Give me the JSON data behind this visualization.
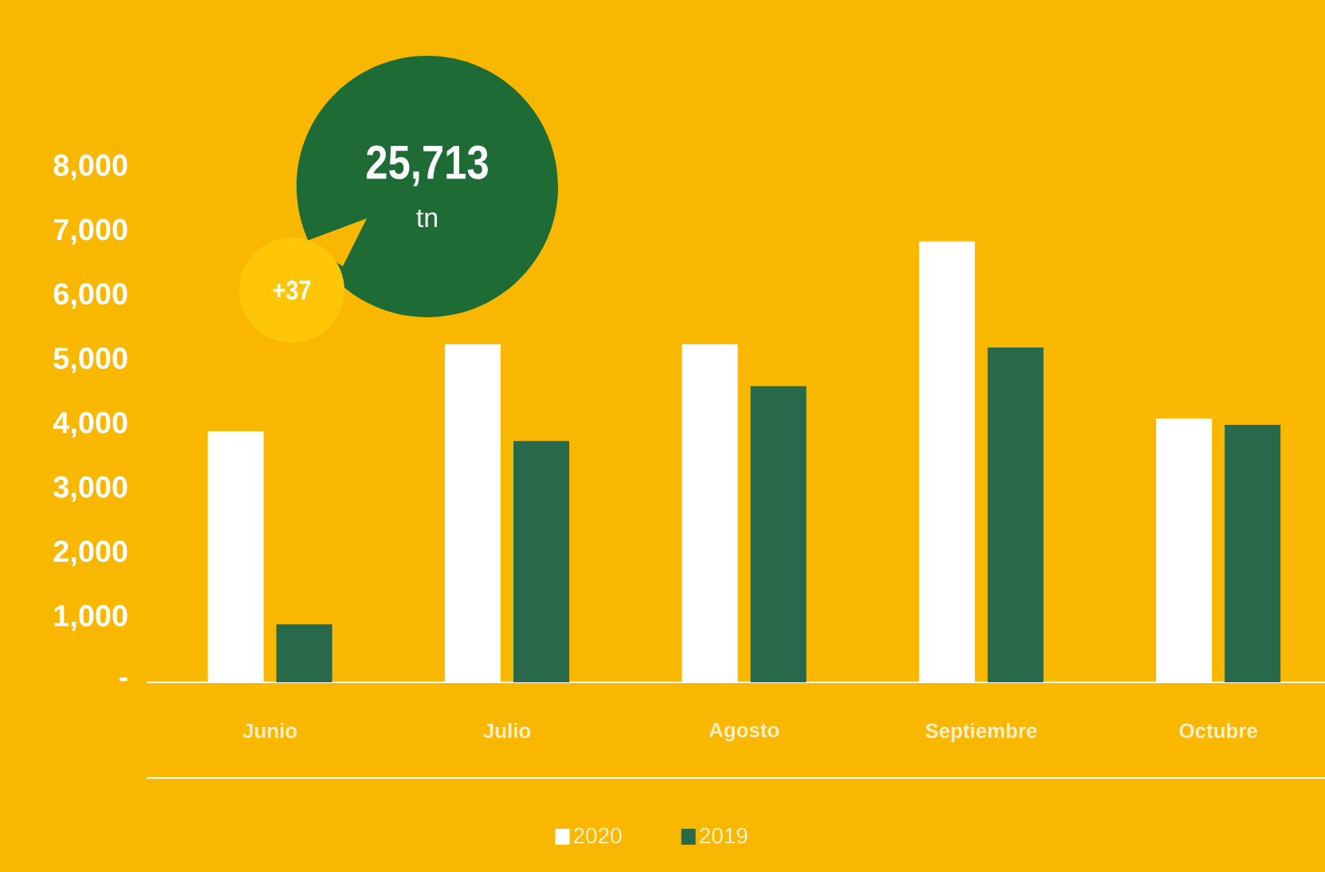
{
  "chart_data": {
    "type": "bar",
    "categories": [
      "Junio",
      "Julio",
      "Agosto",
      "Septiembre",
      "Octubre"
    ],
    "series": [
      {
        "name": "2020",
        "color": "#ffffff",
        "values": [
          3900,
          5250,
          5250,
          6850,
          4100
        ]
      },
      {
        "name": "2019",
        "color": "#27694a",
        "values": [
          900,
          3750,
          4600,
          5200,
          4000
        ]
      }
    ],
    "ylim": [
      0,
      8000
    ],
    "yticks": [
      {
        "value": 0,
        "label": "-"
      },
      {
        "value": 1000,
        "label": "1,000"
      },
      {
        "value": 2000,
        "label": "2,000"
      },
      {
        "value": 3000,
        "label": "3,000"
      },
      {
        "value": 4000,
        "label": "4,000"
      },
      {
        "value": 5000,
        "label": "5,000"
      },
      {
        "value": 6000,
        "label": "6,000"
      },
      {
        "value": 7000,
        "label": "7,000"
      },
      {
        "value": 8000,
        "label": "8,000"
      }
    ],
    "annotations": [
      "25,713",
      "tn",
      "+37"
    ],
    "grid": false,
    "legend": "bottom"
  }
}
